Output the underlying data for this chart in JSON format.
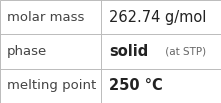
{
  "rows": [
    {
      "label": "molar mass",
      "value_parts": [
        {
          "text": "262.74 g/mol",
          "bold": false,
          "size": 10.5,
          "color": "#222222"
        }
      ]
    },
    {
      "label": "phase",
      "value_parts": [
        {
          "text": "solid",
          "bold": true,
          "size": 10.5,
          "color": "#222222"
        },
        {
          "text": " (at STP)",
          "bold": false,
          "size": 7.5,
          "color": "#666666"
        }
      ]
    },
    {
      "label": "melting point",
      "value_parts": [
        {
          "text": "250 °C",
          "bold": true,
          "size": 10.5,
          "color": "#222222"
        }
      ]
    }
  ],
  "background_color": "#ffffff",
  "border_color": "#bbbbbb",
  "label_color": "#444444",
  "label_fontsize": 9.5,
  "divider_color": "#bbbbbb",
  "col_split": 0.455,
  "fig_width": 2.21,
  "fig_height": 1.03,
  "dpi": 100
}
